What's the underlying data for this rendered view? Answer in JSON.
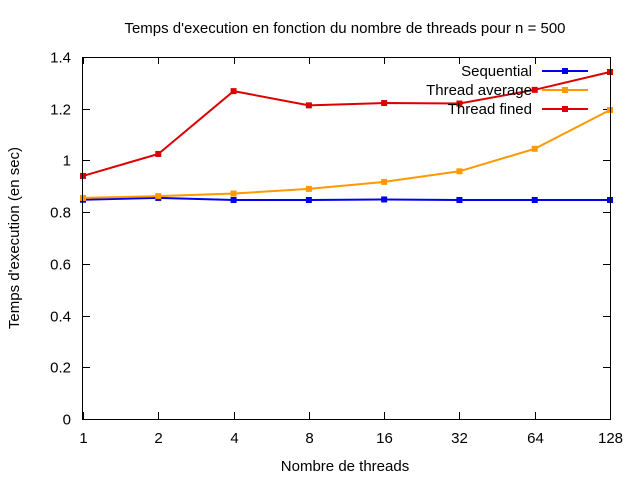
{
  "chart_data": {
    "type": "line",
    "title": "Temps d'execution en fonction du nombre de threads pour n = 500",
    "xlabel": "Nombre de threads",
    "ylabel": "Temps d'execution (en sec)",
    "x_scale": "log2",
    "x": [
      1,
      2,
      4,
      8,
      16,
      32,
      64,
      128
    ],
    "x_tick_labels": [
      "1",
      "2",
      "4",
      "8",
      "16",
      "32",
      "64",
      "128"
    ],
    "ylim": [
      0,
      1.4
    ],
    "y_ticks": [
      0,
      0.2,
      0.4,
      0.6,
      0.8,
      1,
      1.2,
      1.4
    ],
    "y_tick_labels": [
      "0",
      "0.2",
      "0.4",
      "0.6",
      "0.8",
      "1",
      "1.2",
      "1.4"
    ],
    "grid": false,
    "legend_position": "top-right",
    "series": [
      {
        "name": "Sequential",
        "color": "#0000ee",
        "values": [
          0.848,
          0.855,
          0.847,
          0.847,
          0.849,
          0.847,
          0.847,
          0.847
        ]
      },
      {
        "name": "Thread average",
        "color": "#ff9900",
        "values": [
          0.855,
          0.862,
          0.872,
          0.89,
          0.917,
          0.958,
          1.045,
          1.195
        ]
      },
      {
        "name": "Thread fined",
        "color": "#dd0000",
        "values": [
          0.94,
          1.025,
          1.268,
          1.213,
          1.222,
          1.22,
          1.273,
          1.342
        ]
      }
    ]
  }
}
